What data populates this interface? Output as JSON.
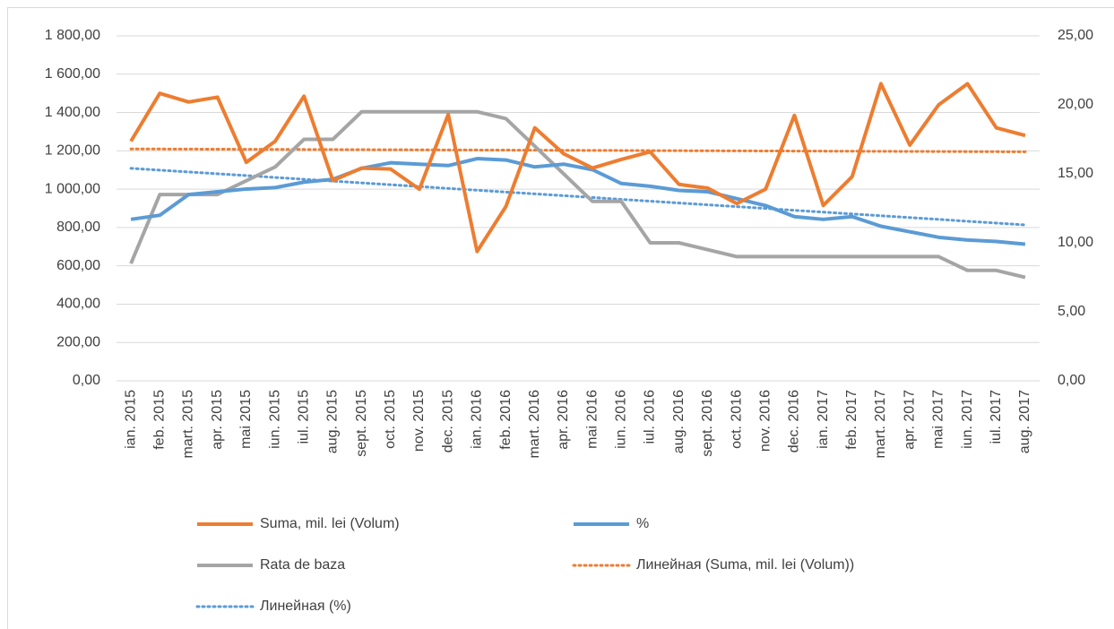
{
  "chart_data": {
    "type": "line",
    "categories": [
      "ian. 2015",
      "feb. 2015",
      "mart. 2015",
      "apr. 2015",
      "mai 2015",
      "iun. 2015",
      "iul. 2015",
      "aug. 2015",
      "sept. 2015",
      "oct. 2015",
      "nov. 2015",
      "dec. 2015",
      "ian. 2016",
      "feb. 2016",
      "mart. 2016",
      "apr. 2016",
      "mai 2016",
      "iun. 2016",
      "iul. 2016",
      "aug. 2016",
      "sept. 2016",
      "oct. 2016",
      "nov. 2016",
      "dec. 2016",
      "ian. 2017",
      "feb. 2017",
      "mart. 2017",
      "apr. 2017",
      "mai 2017",
      "iun. 2017",
      "iul. 2017",
      "aug. 2017"
    ],
    "series": [
      {
        "name": "Suma, mil. lei (Volum)",
        "color": "#ed7d31",
        "axis": "y",
        "values": [
          1250,
          1500,
          1455,
          1480,
          1140,
          1250,
          1485,
          1045,
          1110,
          1105,
          1000,
          1390,
          675,
          910,
          1320,
          1185,
          1110,
          1155,
          1195,
          1025,
          1005,
          925,
          1000,
          1385,
          915,
          1065,
          1550,
          1230,
          1440,
          1550,
          1320,
          1280
        ]
      },
      {
        "name": "%",
        "color": "#5b9bd5",
        "axis": "y2",
        "values": [
          11.7,
          12.0,
          13.5,
          13.7,
          13.9,
          14.0,
          14.4,
          14.6,
          15.4,
          15.8,
          15.7,
          15.6,
          16.1,
          16.0,
          15.5,
          15.7,
          15.3,
          14.3,
          14.1,
          13.8,
          13.7,
          13.2,
          12.7,
          11.9,
          11.7,
          11.9,
          11.2,
          10.8,
          10.4,
          10.2,
          10.1,
          9.9
        ]
      },
      {
        "name": "Rata de baza",
        "color": "#a5a5a5",
        "axis": "y2",
        "values": [
          8.5,
          13.5,
          13.5,
          13.5,
          14.5,
          15.5,
          17.5,
          17.5,
          19.5,
          19.5,
          19.5,
          19.5,
          19.5,
          19.0,
          17.0,
          15.0,
          13.0,
          13.0,
          10.0,
          10.0,
          9.5,
          9.0,
          9.0,
          9.0,
          9.0,
          9.0,
          9.0,
          9.0,
          9.0,
          8.0,
          8.0,
          7.5
        ]
      }
    ],
    "trendlines": [
      {
        "name": "Линейная (Suma, mil. lei (Volum))",
        "color": "#ed7d31",
        "axis": "y",
        "start": 1210,
        "end": 1195
      },
      {
        "name": "Линейная (%)",
        "color": "#5b9bd5",
        "axis": "y2",
        "start": 15.4,
        "end": 11.3
      }
    ],
    "ylim": [
      0,
      1800
    ],
    "yticks": [
      {
        "value": 0,
        "label": "0,00"
      },
      {
        "value": 200,
        "label": "200,00"
      },
      {
        "value": 400,
        "label": "400,00"
      },
      {
        "value": 600,
        "label": "600,00"
      },
      {
        "value": 800,
        "label": "800,00"
      },
      {
        "value": 1000,
        "label": "1 000,00"
      },
      {
        "value": 1200,
        "label": "1 200,00"
      },
      {
        "value": 1400,
        "label": "1 400,00"
      },
      {
        "value": 1600,
        "label": "1 600,00"
      },
      {
        "value": 1800,
        "label": "1 800,00"
      }
    ],
    "y2lim": [
      0,
      25
    ],
    "y2ticks": [
      {
        "value": 0,
        "label": "0,00"
      },
      {
        "value": 5,
        "label": "5,00"
      },
      {
        "value": 10,
        "label": "10,00"
      },
      {
        "value": 15,
        "label": "15,00"
      },
      {
        "value": 20,
        "label": "20,00"
      },
      {
        "value": 25,
        "label": "25,00"
      }
    ],
    "grid": true,
    "legend": "bottom"
  }
}
